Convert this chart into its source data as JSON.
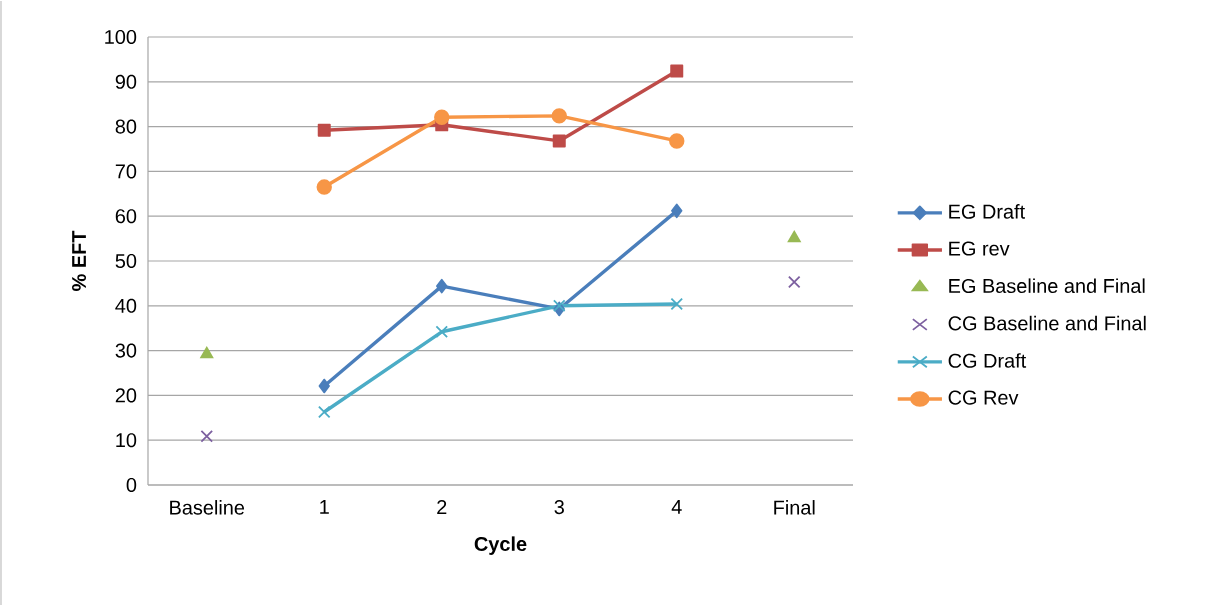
{
  "chart_data": {
    "type": "line",
    "xlabel": "Cycle",
    "ylabel": "% EFT",
    "categories": [
      "Baseline",
      "1",
      "2",
      "3",
      "4",
      "Final"
    ],
    "ylim": [
      0,
      100
    ],
    "yticks": [
      0,
      10,
      20,
      30,
      40,
      50,
      60,
      70,
      80,
      90,
      100
    ],
    "grid": "y",
    "legend": "right",
    "series": [
      {
        "name": "EG Draft",
        "color": "#4a7ebb",
        "marker": "diamond",
        "values": [
          null,
          22.1,
          44.4,
          39.3,
          61.2,
          null
        ]
      },
      {
        "name": "EG rev",
        "color": "#be4b48",
        "marker": "square",
        "values": [
          null,
          79.2,
          80.4,
          76.8,
          92.4,
          null
        ]
      },
      {
        "name": "EG Baseline and Final",
        "type": "scatter",
        "color": "#98b954",
        "marker": "triangle",
        "values": [
          29.2,
          null,
          null,
          null,
          null,
          55.1
        ]
      },
      {
        "name": "CG Baseline and Final",
        "type": "scatter",
        "color": "#7d60a0",
        "marker": "cross",
        "values": [
          10.9,
          null,
          null,
          null,
          null,
          45.3
        ]
      },
      {
        "name": "CG Draft",
        "color": "#4bacc6",
        "marker": "cross",
        "values": [
          null,
          16.3,
          34.2,
          40.0,
          40.4,
          null
        ]
      },
      {
        "name": "CG Rev",
        "color": "#f79646",
        "marker": "circle",
        "values": [
          null,
          66.5,
          82.1,
          82.4,
          76.8,
          null
        ]
      }
    ]
  }
}
